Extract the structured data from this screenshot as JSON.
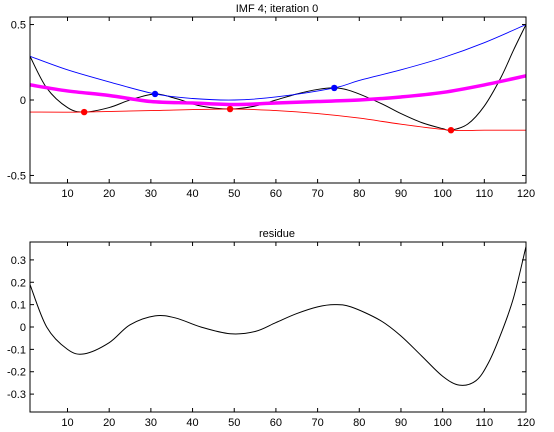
{
  "chart_data": [
    {
      "type": "line",
      "title": "IMF 4;   iteration 0",
      "xlim": [
        1,
        120
      ],
      "ylim": [
        -0.55,
        0.55
      ],
      "xticks": [
        10,
        20,
        30,
        40,
        50,
        60,
        70,
        80,
        90,
        100,
        110,
        120
      ],
      "yticks": [
        -0.5,
        0,
        0.5
      ],
      "ytick_labels": [
        "-0.5",
        "0",
        "0.5"
      ],
      "series": [
        {
          "color": "#000000",
          "x": [
            1,
            5,
            10,
            14,
            20,
            25,
            31,
            36,
            42,
            49,
            55,
            60,
            65,
            70,
            74,
            78,
            85,
            90,
            95,
            100,
            102,
            106,
            110,
            114,
            117,
            120
          ],
          "y": [
            0.29,
            0.08,
            -0.05,
            -0.08,
            -0.05,
            0.0,
            0.04,
            0.01,
            -0.04,
            -0.06,
            -0.04,
            0.0,
            0.04,
            0.07,
            0.08,
            0.06,
            -0.02,
            -0.09,
            -0.15,
            -0.19,
            -0.2,
            -0.16,
            -0.04,
            0.15,
            0.33,
            0.5
          ]
        },
        {
          "color": "#0000ff",
          "x": [
            1,
            10,
            20,
            31,
            40,
            50,
            60,
            74,
            80,
            90,
            100,
            110,
            120
          ],
          "y": [
            0.29,
            0.2,
            0.12,
            0.04,
            0.01,
            0.0,
            0.02,
            0.08,
            0.13,
            0.2,
            0.28,
            0.38,
            0.5
          ]
        },
        {
          "color": "#ff0000",
          "x": [
            1,
            14,
            30,
            49,
            60,
            70,
            80,
            90,
            102,
            110,
            120
          ],
          "y": [
            -0.08,
            -0.08,
            -0.07,
            -0.06,
            -0.07,
            -0.09,
            -0.12,
            -0.16,
            -0.2,
            -0.2,
            -0.2
          ]
        },
        {
          "color": "#ff00ff",
          "x": [
            1,
            10,
            20,
            30,
            40,
            50,
            60,
            70,
            80,
            90,
            100,
            110,
            120
          ],
          "y": [
            0.1,
            0.06,
            0.03,
            -0.01,
            -0.02,
            -0.03,
            -0.02,
            -0.01,
            0.0,
            0.02,
            0.05,
            0.1,
            0.16
          ]
        }
      ],
      "maxima": {
        "color": "#0000ff",
        "x": [
          31,
          74
        ],
        "y": [
          0.04,
          0.08
        ]
      },
      "minima": {
        "color": "#ff0000",
        "x": [
          14,
          49,
          102
        ],
        "y": [
          -0.08,
          -0.06,
          -0.2
        ]
      }
    },
    {
      "type": "line",
      "title": "residue",
      "xlim": [
        1,
        120
      ],
      "ylim": [
        -0.38,
        0.38
      ],
      "xticks": [
        10,
        20,
        30,
        40,
        50,
        60,
        70,
        80,
        90,
        100,
        110,
        120
      ],
      "yticks": [
        -0.3,
        -0.2,
        -0.1,
        0,
        0.1,
        0.2,
        0.3
      ],
      "ytick_labels": [
        "-0.3",
        "-0.2",
        "-0.1",
        "0",
        "0.1",
        "0.2",
        "0.3"
      ],
      "series": [
        {
          "color": "#000000",
          "x": [
            1,
            5,
            10,
            14,
            20,
            25,
            31,
            36,
            42,
            49,
            55,
            60,
            65,
            70,
            74,
            78,
            85,
            90,
            95,
            100,
            104,
            108,
            111,
            114,
            117,
            120
          ],
          "y": [
            0.19,
            0.0,
            -0.1,
            -0.12,
            -0.07,
            0.01,
            0.05,
            0.04,
            0.0,
            -0.03,
            -0.02,
            0.02,
            0.06,
            0.09,
            0.1,
            0.09,
            0.03,
            -0.04,
            -0.13,
            -0.22,
            -0.26,
            -0.24,
            -0.16,
            -0.03,
            0.13,
            0.36
          ]
        }
      ]
    }
  ]
}
